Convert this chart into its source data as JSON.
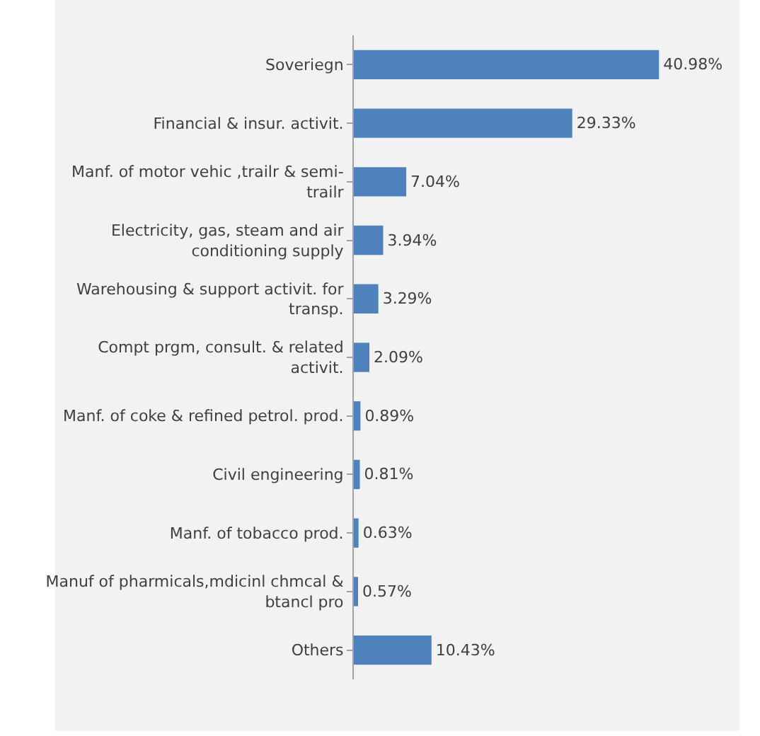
{
  "chart_data": {
    "type": "bar",
    "orientation": "horizontal",
    "categories": [
      "Soveriegn",
      "Financial & insur. activit.",
      "Manf. of motor vehic ,trailr & semi-trailr",
      "Electricity, gas, steam and air conditioning supply",
      "Warehousing & support activit. for transp.",
      "Compt prgm, consult. & related activit.",
      "Manf. of coke & refined petrol. prod.",
      "Civil engineering",
      "Manf. of tobacco prod.",
      "Manuf of pharmicals,mdicinl chmcal & btancl pro",
      "Others"
    ],
    "values": [
      40.98,
      29.33,
      7.04,
      3.94,
      3.29,
      2.09,
      0.89,
      0.81,
      0.63,
      0.57,
      10.43
    ],
    "value_labels": [
      "40.98%",
      "29.33%",
      "7.04%",
      "3.94%",
      "3.29%",
      "2.09%",
      "0.89%",
      "0.81%",
      "0.63%",
      "0.57%",
      "10.43%"
    ],
    "color": "#4f81bd"
  }
}
